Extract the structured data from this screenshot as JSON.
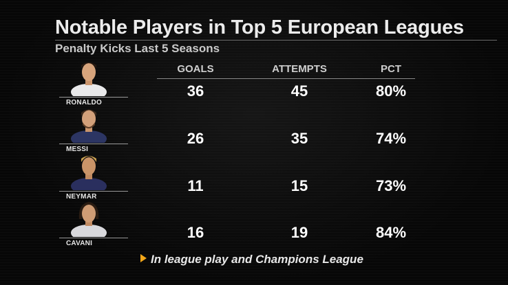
{
  "header": {
    "title": "Notable Players in Top 5 European Leagues",
    "subtitle": "Penalty Kicks Last 5 Seasons"
  },
  "footnote": "In league play and Champions League",
  "colors": {
    "background": "#050505",
    "arrow": "#f2a619",
    "text": "#ffffff"
  },
  "chart_data": {
    "type": "table",
    "title": "Notable Players in Top 5 European Leagues",
    "subtitle": "Penalty Kicks Last 5 Seasons",
    "columns": [
      "GOALS",
      "ATTEMPTS",
      "PCT"
    ],
    "rows": [
      {
        "player": "RONALDO",
        "goals": "36",
        "attempts": "45",
        "pct": "80%"
      },
      {
        "player": "MESSI",
        "goals": "26",
        "attempts": "35",
        "pct": "74%"
      },
      {
        "player": "NEYMAR",
        "goals": "11",
        "attempts": "15",
        "pct": "73%"
      },
      {
        "player": "CAVANI",
        "goals": "16",
        "attempts": "19",
        "pct": "84%"
      }
    ],
    "footnote": "In league play and Champions League"
  }
}
